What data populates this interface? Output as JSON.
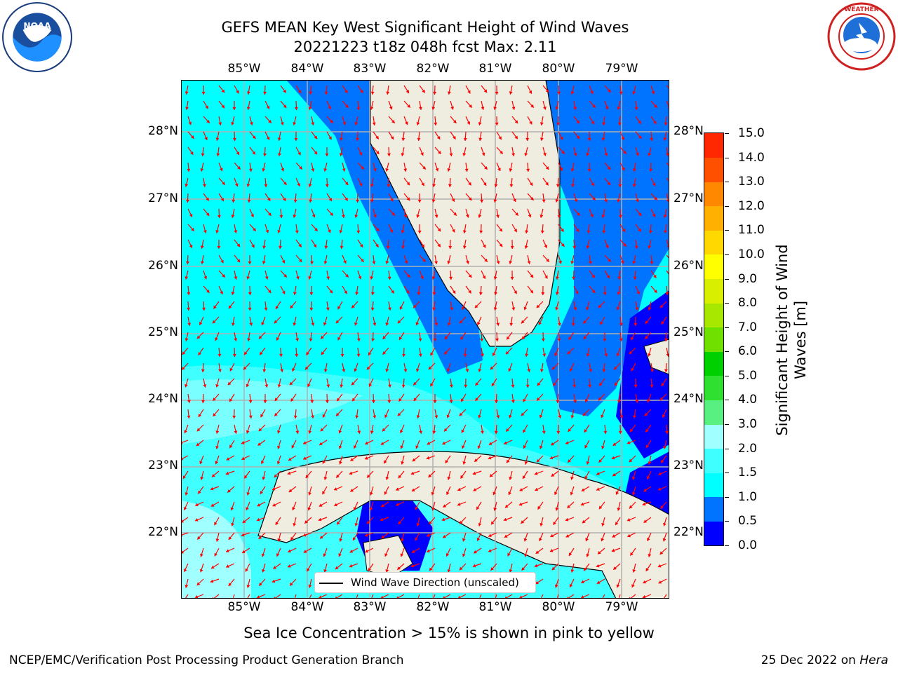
{
  "title_line1": "GEFS MEAN Key West Significant Height of Wind Waves",
  "title_line2": "20221223 t18z 048h fcst   Max: 2.11",
  "lon_labels": [
    "85°W",
    "84°W",
    "83°W",
    "82°W",
    "81°W",
    "80°W",
    "79°W"
  ],
  "lat_labels": [
    "28°N",
    "27°N",
    "26°N",
    "25°N",
    "24°N",
    "23°N",
    "22°N"
  ],
  "legend_label": "Wind Wave Direction (unscaled)",
  "colorbar": {
    "label_line1": "Significant Height of Wind",
    "label_line2": "Waves [m]",
    "ticks": [
      "15.0",
      "14.0",
      "13.0",
      "12.0",
      "11.0",
      "10.0",
      "9.0",
      "8.0",
      "7.0",
      "6.0",
      "5.0",
      "4.0",
      "3.0",
      "2.0",
      "1.5",
      "1.0",
      "0.5",
      "0.0"
    ],
    "colors": [
      "#0000ff",
      "#0073ff",
      "#00ffff",
      "#40ffff",
      "#a0ffff",
      "#58f080",
      "#30e030",
      "#00d000",
      "#70e000",
      "#a8e800",
      "#d8f000",
      "#ffff00",
      "#ffd800",
      "#ffb000",
      "#ff8800",
      "#ff5000",
      "#ff2800"
    ]
  },
  "sea_ice_note": "Sea Ice Concentration > 15% is shown in pink to yellow",
  "credit": "NCEP/EMC/Verification Post Processing Product Generation Branch",
  "date": "25 Dec 2022 on",
  "host": "Hera",
  "logos": {
    "left": "NOAA",
    "right": "NATIONAL WEATHER SERVICE"
  }
}
